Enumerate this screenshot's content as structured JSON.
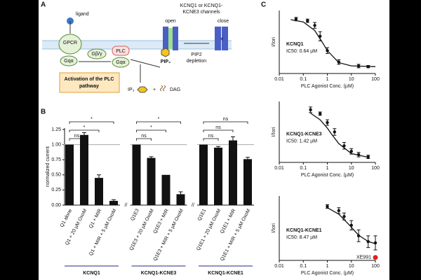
{
  "panel_labels": [
    "A",
    "B",
    "C"
  ],
  "panel_a": {
    "ligand": "ligand",
    "gpcr": "GPCR",
    "gbg": "Gβ/γ",
    "gqa": "Gqα",
    "plc": "PLC",
    "gqa2": "Gqα",
    "channel_label": [
      "KCNQ1 or KCNQ1-",
      "KCNE3 channels"
    ],
    "open": "open",
    "close": "close",
    "pip2": "PIP₂",
    "depletion": [
      "PIP2",
      "depletion"
    ],
    "box": [
      "Activation of the PLC",
      "pathway"
    ],
    "ip3": "IP₃",
    "plus": "+",
    "dag": "DAG"
  },
  "chart_data": [
    {
      "type": "bar",
      "ylabel": "normalized current",
      "categories": [
        "Q1 alone",
        "Q1 + 20 µM OxoM",
        "Q1 + MIR",
        "Q1 + MIR + 5 µM OxoM",
        "Q1E3",
        "Q1E3 + 20 µM OxoM",
        "Q1E3 + MIR",
        "Q1E3 + MIR + 5 µM OxoM",
        "Q1E1",
        "Q1E1 + 20 µM OxoM",
        "Q1E1 + MIR",
        "Q1E1 + MIR + 5 µM OxoM"
      ],
      "values": [
        1.0,
        1.16,
        0.45,
        0.07,
        1.0,
        0.78,
        0.5,
        0.18,
        1.0,
        0.95,
        1.07,
        0.76
      ],
      "errors": [
        0,
        0.04,
        0.05,
        0.02,
        0,
        0.02,
        0,
        0.04,
        0,
        0.02,
        0.06,
        0.03
      ],
      "color": "#111111",
      "ylim": [
        0,
        1.25
      ],
      "yticks": [
        {
          "value": 0,
          "label": "0.00"
        },
        {
          "value": 0.25,
          "label": "0.25"
        },
        {
          "value": 0.5,
          "label": "0.50"
        },
        {
          "value": 0.75,
          "label": "0.75"
        },
        {
          "value": 1,
          "label": "1.00"
        },
        {
          "value": 1.25,
          "label": "1.25"
        }
      ],
      "reference_line": 1,
      "groups": [
        "KCNQ1",
        "KCNQ1-KCNE3",
        "KCNQ1-KCNE1"
      ],
      "group_color": "#1f2a8a",
      "significance": [
        "ns",
        "*",
        "*",
        "ns",
        "*",
        "*",
        "ns",
        "ns",
        "ns"
      ]
    },
    {
      "type": "line",
      "xscale": "log",
      "xlabel": "PLC Agonist Conc. (µM)",
      "ylabel": "I/Iori",
      "x": [
        0.05,
        0.15,
        0.3,
        0.5,
        1,
        3,
        20,
        50
      ],
      "values": [
        0.95,
        0.92,
        0.84,
        0.65,
        0.4,
        0.2,
        0.13,
        0.12
      ],
      "errors": [
        0.03,
        0.03,
        0.05,
        0.08,
        0.05,
        0.04,
        0.03,
        0.02
      ],
      "fit_x": [
        0.03,
        0.1,
        0.3,
        0.64,
        1,
        3,
        10,
        100
      ],
      "fit_values": [
        0.94,
        0.9,
        0.75,
        0.535,
        0.4,
        0.19,
        0.133,
        0.12
      ],
      "xlim": [
        0.01,
        100
      ],
      "xticks": [
        0.01,
        0.1,
        1,
        10,
        100
      ],
      "ylim": [
        0,
        1.1
      ],
      "annotations": [
        "KCNQ1",
        "IC50: 0.64 µM"
      ],
      "color": "#111111"
    },
    {
      "type": "line",
      "xscale": "log",
      "xlabel": "PLC Agonist Conc. (µM)",
      "ylabel": "I/Iori",
      "x": [
        0.2,
        0.5,
        1,
        2,
        5,
        10,
        20,
        50
      ],
      "values": [
        0.95,
        0.88,
        0.72,
        0.55,
        0.3,
        0.2,
        0.14,
        0.1
      ],
      "errors": [
        0.05,
        0.03,
        0.05,
        0.06,
        0.06,
        0.05,
        0.04,
        0.03
      ],
      "fit_x": [
        0.2,
        0.5,
        1,
        1.42,
        3,
        10,
        50
      ],
      "fit_values": [
        0.89,
        0.77,
        0.62,
        0.525,
        0.34,
        0.16,
        0.092
      ],
      "xlim": [
        0.01,
        100
      ],
      "xticks": [
        0.01,
        0.1,
        1,
        10,
        100
      ],
      "ylim": [
        0,
        1.1
      ],
      "annotations": [
        "KCNQ1-KCNE3",
        "IC50: 1.42 µM"
      ],
      "color": "#111111"
    },
    {
      "type": "line",
      "xscale": "log",
      "xlabel": "PLC Agonist Conc. (µM)",
      "ylabel": "I/Iori",
      "x": [
        1,
        3,
        5,
        10,
        20,
        50,
        100
      ],
      "values": [
        0.92,
        0.85,
        0.75,
        0.6,
        0.42,
        0.32,
        0.3
      ],
      "errors": [
        0.03,
        0.05,
        0.06,
        0.08,
        0.1,
        0.1,
        0.12
      ],
      "fit_x": [
        1,
        3,
        8.47,
        20,
        50,
        100
      ],
      "fit_values": [
        0.9,
        0.79,
        0.6,
        0.43,
        0.324,
        0.284
      ],
      "xlim": [
        0.01,
        100
      ],
      "xticks": [
        0.01,
        0.1,
        1,
        10,
        100
      ],
      "ylim": [
        0,
        1.1
      ],
      "annotations": [
        "KCNQ1-KCNE1",
        "IC50: 8.47 µM"
      ],
      "color": "#111111",
      "marker": {
        "label": "XE991",
        "x": 100,
        "value": 0.05,
        "color": "#e02020"
      }
    }
  ]
}
